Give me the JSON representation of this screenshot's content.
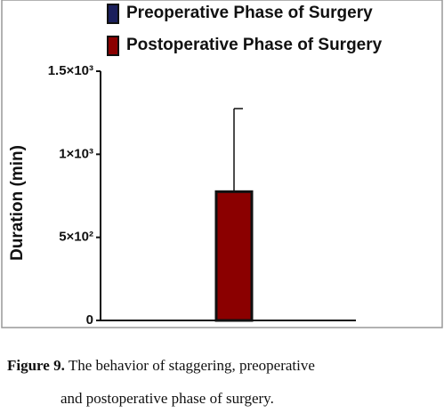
{
  "chart_data": {
    "type": "bar",
    "y_label": "Duration (min)",
    "categories": [
      null
    ],
    "series": [
      {
        "name": "Preoperative Phase of Surgery",
        "color": "#1b1f5c",
        "values": [
          0
        ]
      },
      {
        "name": "Postoperative Phase of Surgery",
        "color": "#8b0000",
        "values": [
          775
        ],
        "errors": [
          500
        ]
      }
    ],
    "ylim": [
      0,
      1500
    ],
    "yticks": [
      {
        "value": 0,
        "label": "0"
      },
      {
        "value": 500,
        "label": "5×10²"
      },
      {
        "value": 1000,
        "label": "1×10³"
      },
      {
        "value": 1500,
        "label": "1.5×10³"
      }
    ],
    "grid": false,
    "legend": "top"
  },
  "caption": {
    "label": "Figure 9.",
    "lines": [
      "The behavior of staggering, preoperative",
      "and postoperative phase of surgery."
    ]
  }
}
